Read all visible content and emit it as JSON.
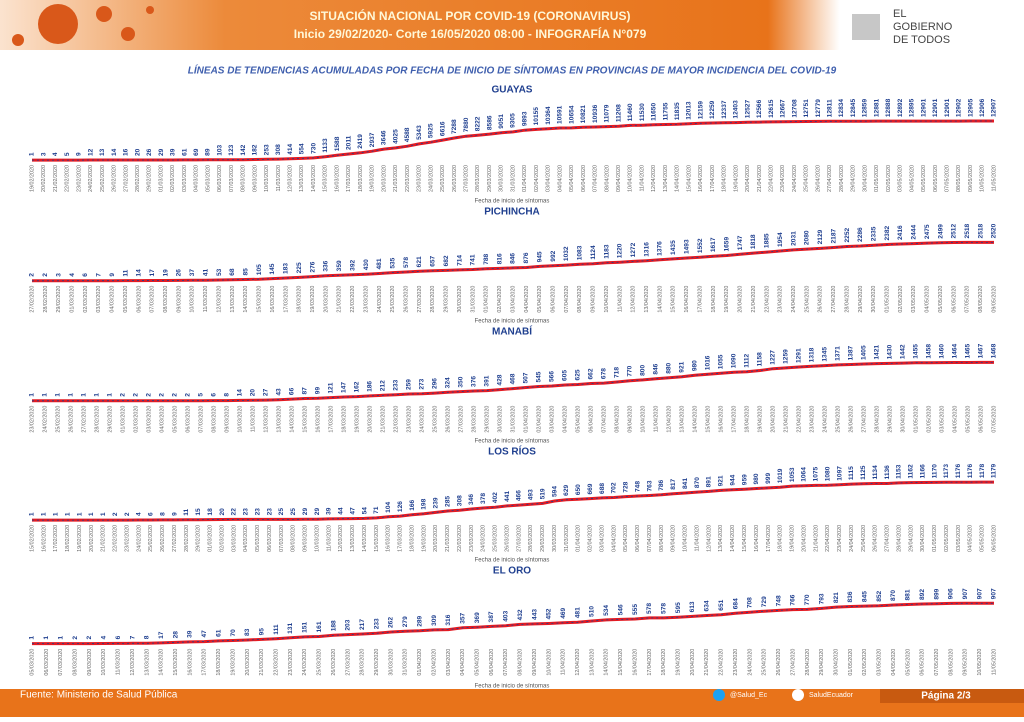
{
  "header": {
    "title": "SITUACIÓN NACIONAL POR  COVID-19 (CORONAVIRUS)",
    "subtitle": "Inicio 29/02/2020- Corte 16/05/2020 08:00  - INFOGRAFÍA N°079",
    "logo": [
      "EL",
      "GOBIERNO",
      "DE TODOS"
    ]
  },
  "heading": "LÍNEAS DE TENDENCIAS ACUMULADAS POR FECHA DE INICIO DE SÍNTOMAS EN PROVINCIAS DE MAYOR INCIDENCIA DEL COVID-19",
  "chart_data": [
    {
      "type": "line",
      "title": "GUAYAS",
      "x_label": "Fecha de inicio de síntomas",
      "color": "#e31b23",
      "label_color": "#1f3f8f",
      "categories": [
        "19/02/2020",
        "20/02/2020",
        "21/02/2020",
        "22/02/2020",
        "23/02/2020",
        "24/02/2020",
        "25/02/2020",
        "26/02/2020",
        "27/02/2020",
        "28/02/2020",
        "29/02/2020",
        "01/03/2020",
        "02/03/2020",
        "03/03/2020",
        "04/03/2020",
        "05/03/2020",
        "06/03/2020",
        "07/03/2020",
        "08/03/2020",
        "09/03/2020",
        "10/03/2020",
        "11/03/2020",
        "12/03/2020",
        "13/03/2020",
        "14/03/2020",
        "15/03/2020",
        "16/03/2020",
        "17/03/2020",
        "18/03/2020",
        "19/03/2020",
        "20/03/2020",
        "21/03/2020",
        "22/03/2020",
        "23/03/2020",
        "24/03/2020",
        "25/03/2020",
        "26/03/2020",
        "27/03/2020",
        "28/03/2020",
        "29/03/2020",
        "30/03/2020",
        "31/03/2020",
        "01/04/2020",
        "02/04/2020",
        "03/04/2020",
        "04/04/2020",
        "05/04/2020",
        "06/04/2020",
        "07/04/2020",
        "08/04/2020",
        "09/04/2020",
        "10/04/2020",
        "11/04/2020",
        "12/04/2020",
        "13/04/2020",
        "14/04/2020",
        "15/04/2020",
        "16/04/2020",
        "17/04/2020",
        "18/04/2020",
        "19/04/2020",
        "20/04/2020",
        "21/04/2020",
        "22/04/2020",
        "23/04/2020",
        "24/04/2020",
        "25/04/2020",
        "26/04/2020",
        "27/04/2020",
        "28/04/2020",
        "29/04/2020",
        "30/04/2020",
        "01/05/2020",
        "02/05/2020",
        "03/05/2020",
        "04/05/2020",
        "05/05/2020",
        "06/05/2020",
        "07/05/2020",
        "08/05/2020",
        "09/05/2020",
        "10/05/2020",
        "11/05/2020"
      ],
      "values": [
        1,
        3,
        4,
        5,
        9,
        12,
        13,
        14,
        16,
        20,
        26,
        29,
        39,
        61,
        69,
        89,
        103,
        123,
        142,
        182,
        253,
        308,
        414,
        554,
        730,
        1133,
        1588,
        2011,
        2419,
        2937,
        3646,
        4025,
        4588,
        5343,
        5925,
        6616,
        7288,
        7880,
        8222,
        8586,
        9051,
        9305,
        9893,
        10155,
        10364,
        10591,
        10654,
        10821,
        10936,
        11079,
        11208,
        11460,
        11530,
        11650,
        11755,
        11835,
        12013,
        12159,
        12259,
        12337,
        12403,
        12527,
        12566,
        12615,
        12667,
        12708,
        12751,
        12779,
        12811,
        12834,
        12845,
        12859,
        12881,
        12888,
        12892,
        12895,
        12901,
        12901,
        12901,
        12902,
        12905,
        12906,
        12907
      ]
    },
    {
      "type": "line",
      "title": "PICHINCHA",
      "x_label": "Fecha de inicio de síntomas",
      "color": "#e31b23",
      "label_color": "#1f3f8f",
      "categories": [
        "27/02/2020",
        "28/02/2020",
        "29/02/2020",
        "01/03/2020",
        "02/03/2020",
        "03/03/2020",
        "04/03/2020",
        "05/03/2020",
        "06/03/2020",
        "07/03/2020",
        "08/03/2020",
        "09/03/2020",
        "10/03/2020",
        "11/03/2020",
        "12/03/2020",
        "13/03/2020",
        "14/03/2020",
        "15/03/2020",
        "16/03/2020",
        "17/03/2020",
        "18/03/2020",
        "19/03/2020",
        "20/03/2020",
        "21/03/2020",
        "22/03/2020",
        "23/03/2020",
        "24/03/2020",
        "25/03/2020",
        "26/03/2020",
        "27/03/2020",
        "28/03/2020",
        "29/03/2020",
        "30/03/2020",
        "31/03/2020",
        "01/04/2020",
        "02/04/2020",
        "03/04/2020",
        "04/04/2020",
        "05/04/2020",
        "06/04/2020",
        "07/04/2020",
        "08/04/2020",
        "09/04/2020",
        "10/04/2020",
        "11/04/2020",
        "12/04/2020",
        "13/04/2020",
        "14/04/2020",
        "15/04/2020",
        "16/04/2020",
        "17/04/2020",
        "18/04/2020",
        "19/04/2020",
        "20/04/2020",
        "21/04/2020",
        "22/04/2020",
        "23/04/2020",
        "24/04/2020",
        "25/04/2020",
        "26/04/2020",
        "27/04/2020",
        "28/04/2020",
        "29/04/2020",
        "30/04/2020",
        "01/05/2020",
        "02/05/2020",
        "03/05/2020",
        "04/05/2020",
        "05/05/2020",
        "06/05/2020",
        "07/05/2020",
        "08/05/2020",
        "09/05/2020"
      ],
      "values": [
        2,
        2,
        3,
        4,
        6,
        7,
        9,
        11,
        14,
        17,
        19,
        26,
        37,
        41,
        53,
        68,
        85,
        105,
        145,
        183,
        225,
        276,
        336,
        359,
        392,
        430,
        481,
        535,
        578,
        621,
        657,
        682,
        714,
        741,
        788,
        816,
        846,
        876,
        945,
        992,
        1032,
        1083,
        1124,
        1183,
        1220,
        1272,
        1316,
        1376,
        1435,
        1493,
        1552,
        1617,
        1659,
        1747,
        1818,
        1885,
        1954,
        2031,
        2080,
        2129,
        2187,
        2252,
        2286,
        2335,
        2382,
        2416,
        2444,
        2475,
        2499,
        2512,
        2518,
        2518,
        2520
      ]
    },
    {
      "type": "line",
      "title": "MANABÍ",
      "x_label": "Fecha de inicio de síntomas",
      "color": "#e31b23",
      "label_color": "#1f3f8f",
      "categories": [
        "23/02/2020",
        "24/02/2020",
        "25/02/2020",
        "26/02/2020",
        "27/02/2020",
        "28/02/2020",
        "29/02/2020",
        "01/03/2020",
        "02/03/2020",
        "03/03/2020",
        "04/03/2020",
        "05/03/2020",
        "06/03/2020",
        "07/03/2020",
        "08/03/2020",
        "09/03/2020",
        "10/03/2020",
        "11/03/2020",
        "12/03/2020",
        "13/03/2020",
        "14/03/2020",
        "15/03/2020",
        "16/03/2020",
        "17/03/2020",
        "18/03/2020",
        "19/03/2020",
        "20/03/2020",
        "21/03/2020",
        "22/03/2020",
        "23/03/2020",
        "24/03/2020",
        "25/03/2020",
        "26/03/2020",
        "27/03/2020",
        "28/03/2020",
        "29/03/2020",
        "30/03/2020",
        "31/03/2020",
        "01/04/2020",
        "02/04/2020",
        "03/04/2020",
        "04/04/2020",
        "05/04/2020",
        "06/04/2020",
        "07/04/2020",
        "08/04/2020",
        "09/04/2020",
        "10/04/2020",
        "11/04/2020",
        "12/04/2020",
        "13/04/2020",
        "14/04/2020",
        "15/04/2020",
        "16/04/2020",
        "17/04/2020",
        "18/04/2020",
        "19/04/2020",
        "20/04/2020",
        "21/04/2020",
        "22/04/2020",
        "23/04/2020",
        "24/04/2020",
        "25/04/2020",
        "26/04/2020",
        "27/04/2020",
        "28/04/2020",
        "29/04/2020",
        "30/04/2020",
        "01/05/2020",
        "02/05/2020",
        "03/05/2020",
        "04/05/2020",
        "05/05/2020",
        "06/05/2020",
        "07/05/2020"
      ],
      "values": [
        1,
        1,
        1,
        1,
        1,
        1,
        1,
        2,
        2,
        2,
        2,
        2,
        2,
        5,
        6,
        8,
        14,
        20,
        27,
        43,
        66,
        87,
        99,
        121,
        147,
        162,
        186,
        212,
        233,
        259,
        273,
        296,
        324,
        350,
        376,
        391,
        428,
        468,
        507,
        545,
        566,
        605,
        625,
        662,
        678,
        718,
        770,
        800,
        846,
        880,
        921,
        980,
        1016,
        1055,
        1090,
        1112,
        1158,
        1227,
        1259,
        1291,
        1318,
        1345,
        1371,
        1387,
        1405,
        1421,
        1430,
        1442,
        1455,
        1458,
        1460,
        1464,
        1465,
        1467,
        1468
      ]
    },
    {
      "type": "line",
      "title": "LOS RÍOS",
      "x_label": "Fecha de inicio de síntomas",
      "color": "#e31b23",
      "label_color": "#1f3f8f",
      "categories": [
        "15/02/2020",
        "16/02/2020",
        "17/02/2020",
        "18/02/2020",
        "19/02/2020",
        "20/02/2020",
        "21/02/2020",
        "22/02/2020",
        "23/02/2020",
        "24/02/2020",
        "25/02/2020",
        "26/02/2020",
        "27/02/2020",
        "28/02/2020",
        "29/02/2020",
        "01/03/2020",
        "02/03/2020",
        "03/03/2020",
        "04/03/2020",
        "05/03/2020",
        "06/03/2020",
        "07/03/2020",
        "08/03/2020",
        "09/03/2020",
        "10/03/2020",
        "11/03/2020",
        "12/03/2020",
        "13/03/2020",
        "14/03/2020",
        "15/03/2020",
        "16/03/2020",
        "17/03/2020",
        "18/03/2020",
        "19/03/2020",
        "20/03/2020",
        "21/03/2020",
        "22/03/2020",
        "23/03/2020",
        "24/03/2020",
        "25/03/2020",
        "26/03/2020",
        "27/03/2020",
        "28/03/2020",
        "29/03/2020",
        "30/03/2020",
        "31/03/2020",
        "01/04/2020",
        "02/04/2020",
        "03/04/2020",
        "04/04/2020",
        "05/04/2020",
        "06/04/2020",
        "07/04/2020",
        "08/04/2020",
        "09/04/2020",
        "10/04/2020",
        "11/04/2020",
        "12/04/2020",
        "13/04/2020",
        "14/04/2020",
        "15/04/2020",
        "16/04/2020",
        "17/04/2020",
        "18/04/2020",
        "19/04/2020",
        "20/04/2020",
        "21/04/2020",
        "22/04/2020",
        "23/04/2020",
        "24/04/2020",
        "25/04/2020",
        "26/04/2020",
        "27/04/2020",
        "28/04/2020",
        "29/04/2020",
        "30/04/2020",
        "01/05/2020",
        "02/05/2020",
        "03/05/2020",
        "04/05/2020",
        "05/05/2020",
        "06/05/2020"
      ],
      "values": [
        1,
        1,
        1,
        1,
        1,
        1,
        1,
        2,
        2,
        4,
        6,
        8,
        9,
        11,
        15,
        18,
        20,
        22,
        23,
        23,
        23,
        25,
        25,
        29,
        29,
        39,
        44,
        47,
        54,
        71,
        104,
        126,
        166,
        198,
        239,
        285,
        308,
        346,
        378,
        402,
        441,
        466,
        493,
        519,
        594,
        629,
        650,
        669,
        688,
        702,
        728,
        748,
        763,
        786,
        817,
        841,
        870,
        891,
        921,
        944,
        959,
        980,
        999,
        1019,
        1053,
        1064,
        1075,
        1080,
        1097,
        1115,
        1125,
        1134,
        1136,
        1153,
        1162,
        1166,
        1170,
        1173,
        1176,
        1176,
        1178,
        1179
      ]
    },
    {
      "type": "line",
      "title": "EL ORO",
      "x_label": "Fecha de inicio de síntomas",
      "color": "#e31b23",
      "label_color": "#1f3f8f",
      "categories": [
        "05/03/2020",
        "06/03/2020",
        "07/03/2020",
        "08/03/2020",
        "09/03/2020",
        "10/03/2020",
        "11/03/2020",
        "12/03/2020",
        "13/03/2020",
        "14/03/2020",
        "15/03/2020",
        "16/03/2020",
        "17/03/2020",
        "18/03/2020",
        "19/03/2020",
        "20/03/2020",
        "21/03/2020",
        "22/03/2020",
        "23/03/2020",
        "24/03/2020",
        "25/03/2020",
        "26/03/2020",
        "27/03/2020",
        "28/03/2020",
        "29/03/2020",
        "30/03/2020",
        "31/03/2020",
        "01/04/2020",
        "02/04/2020",
        "03/04/2020",
        "04/04/2020",
        "05/04/2020",
        "06/04/2020",
        "07/04/2020",
        "08/04/2020",
        "09/04/2020",
        "10/04/2020",
        "11/04/2020",
        "12/04/2020",
        "13/04/2020",
        "14/04/2020",
        "15/04/2020",
        "16/04/2020",
        "17/04/2020",
        "18/04/2020",
        "19/04/2020",
        "20/04/2020",
        "21/04/2020",
        "22/04/2020",
        "23/04/2020",
        "24/04/2020",
        "25/04/2020",
        "26/04/2020",
        "27/04/2020",
        "28/04/2020",
        "29/04/2020",
        "30/04/2020",
        "01/05/2020",
        "02/05/2020",
        "03/05/2020",
        "04/05/2020",
        "05/05/2020",
        "06/05/2020",
        "07/05/2020",
        "08/05/2020",
        "09/05/2020",
        "10/05/2020",
        "11/05/2020"
      ],
      "values": [
        1,
        1,
        1,
        2,
        2,
        4,
        6,
        7,
        8,
        17,
        28,
        39,
        47,
        61,
        70,
        83,
        95,
        111,
        131,
        151,
        161,
        188,
        203,
        217,
        233,
        262,
        279,
        289,
        309,
        316,
        357,
        369,
        387,
        403,
        432,
        443,
        452,
        469,
        481,
        510,
        534,
        546,
        555,
        578,
        578,
        595,
        613,
        634,
        651,
        684,
        708,
        729,
        748,
        766,
        770,
        793,
        821,
        836,
        845,
        852,
        870,
        881,
        892,
        899,
        906,
        907,
        907,
        907
      ]
    }
  ],
  "footer": {
    "source": "Fuente: Ministerio de Salud Pública",
    "twitter": "@Salud_Ec",
    "facebook": "SaludEcuador",
    "page": "Página 2/3"
  }
}
